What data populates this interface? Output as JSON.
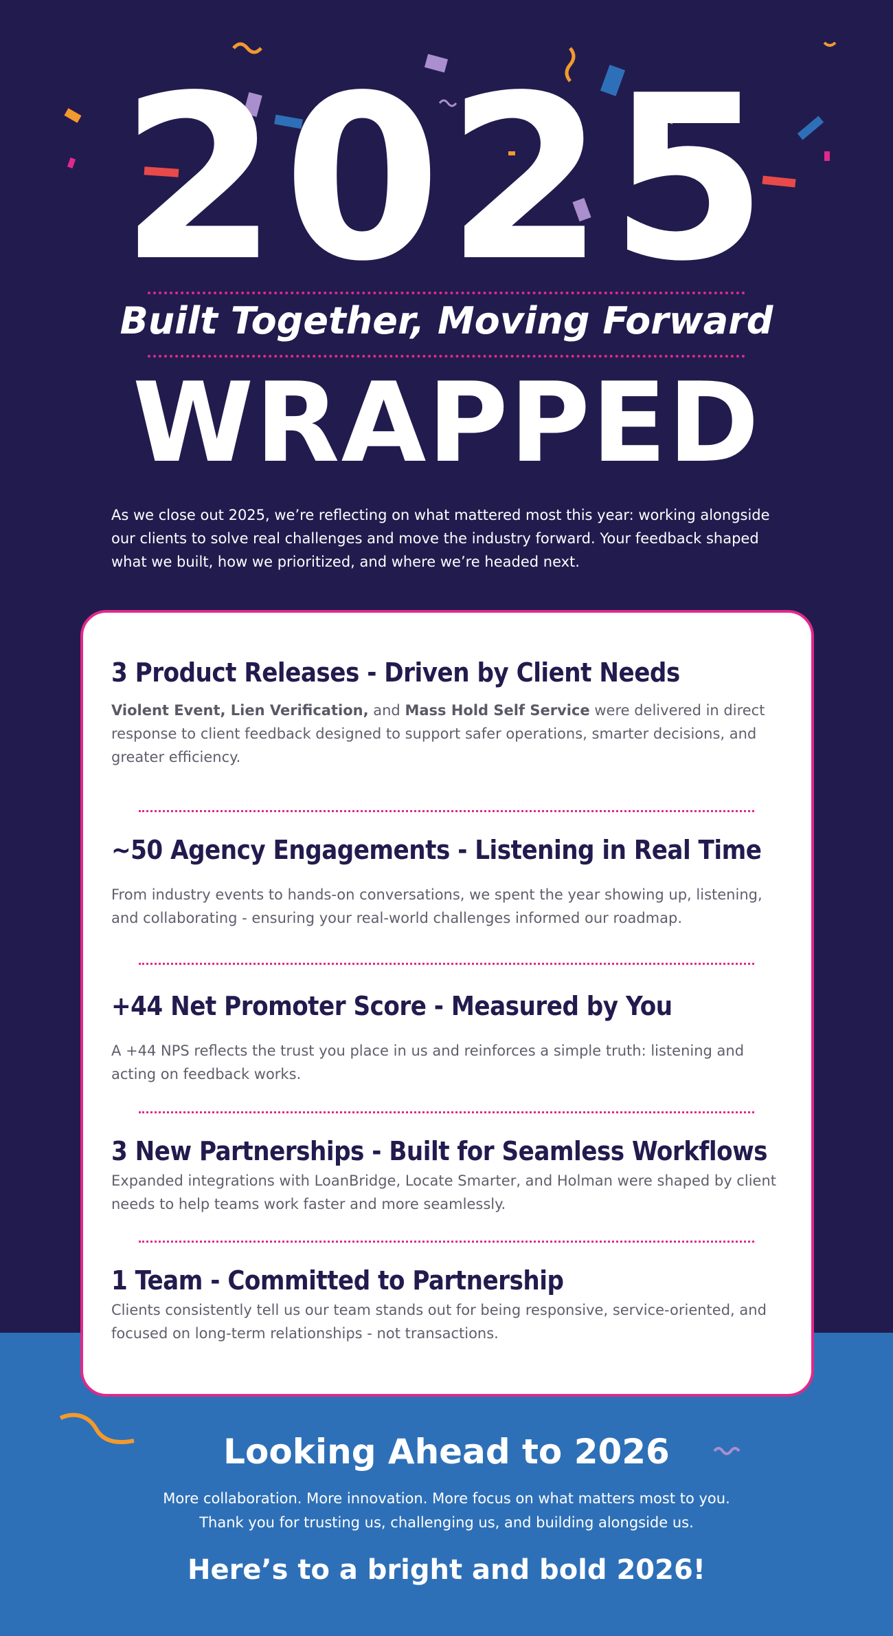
{
  "hero": {
    "year": "2025",
    "tagline": "Built Together, Moving Forward",
    "headline": "WRAPPED",
    "intro": "As we close out 2025, we’re reflecting on what mattered most this year: working alongside our clients to solve real challenges and move the industry forward. Your feedback shaped what we built, how we prioritized, and where we’re headed next."
  },
  "highlights": [
    {
      "title": "3 Product Releases - Driven by Client Needs",
      "body_parts": [
        "Violent Event, Lien Verification,",
        " and ",
        "Mass Hold Self Service",
        " were delivered in direct response to client feedback designed to support safer operations, smarter decisions, and greater efficiency."
      ]
    },
    {
      "title": "~50 Agency Engagements - Listening in Real Time",
      "body": "From industry events to hands-on conversations, we spent the year showing up, listening, and collaborating - ensuring your real-world challenges informed our roadmap."
    },
    {
      "title": "+44 Net Promoter Score - Measured by You",
      "body": "A +44 NPS reflects the trust you place in us and reinforces a simple truth: listening and acting on feedback works."
    },
    {
      "title": "3 New Partnerships - Built for Seamless Workflows",
      "body": "Expanded integrations with LoanBridge, Locate Smarter, and Holman were shaped by client needs to help teams work faster and more seamlessly."
    },
    {
      "title": "1 Team - Committed to Partnership",
      "body": "Clients consistently tell us our team stands out for being responsive, service-oriented, and focused on long-term relationships - not transactions."
    }
  ],
  "footer": {
    "heading": "Looking Ahead to 2026",
    "line1": "More collaboration. More innovation. More focus on what matters most to you.",
    "line2": "Thank you for trusting us, challenging us, and building alongside us.",
    "closing": "Here’s to a bright and bold 2026!"
  },
  "colors": {
    "navy": "#221b4e",
    "blue": "#2e70b7",
    "accent_pink": "#e0298a",
    "confetti": [
      "#e84a4a",
      "#f29a2e",
      "#2e70b7",
      "#a98fce",
      "#e0298a"
    ]
  }
}
